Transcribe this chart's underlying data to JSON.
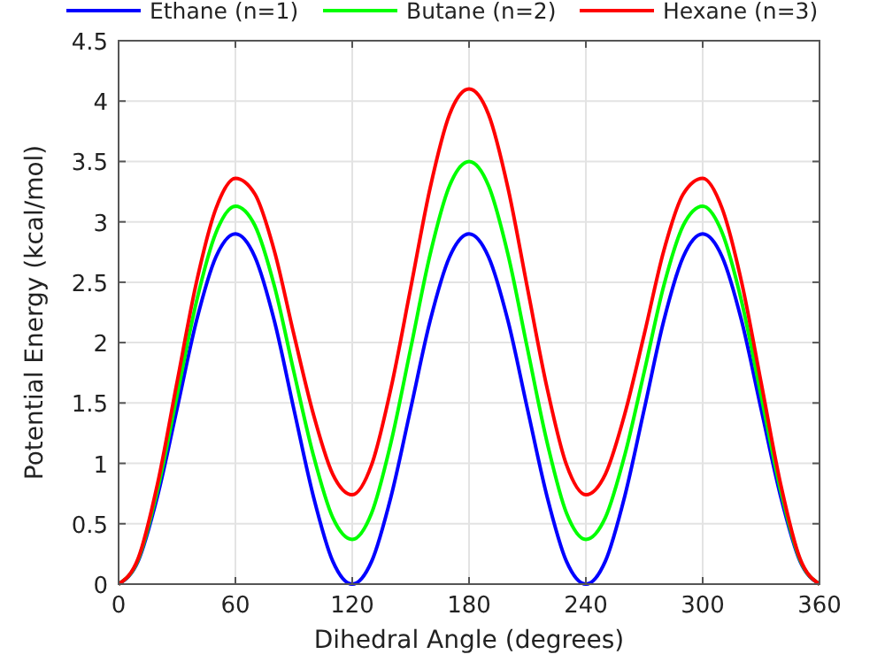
{
  "chart_data": {
    "type": "line",
    "xlabel": "Dihedral Angle (degrees)",
    "ylabel": "Potential Energy (kcal/mol)",
    "x": [
      0,
      10,
      20,
      30,
      40,
      50,
      60,
      70,
      80,
      90,
      100,
      110,
      120,
      130,
      140,
      150,
      160,
      170,
      180,
      190,
      200,
      210,
      220,
      230,
      240,
      250,
      260,
      270,
      280,
      290,
      300,
      310,
      320,
      330,
      340,
      350,
      360
    ],
    "xlim": [
      0,
      360
    ],
    "xticks": [
      0,
      60,
      120,
      180,
      240,
      300,
      360
    ],
    "ylim": [
      0,
      4.5
    ],
    "yticks": [
      0,
      0.5,
      1,
      1.5,
      2,
      2.5,
      3,
      3.5,
      4,
      4.5
    ],
    "grid": true,
    "legend": "top",
    "line_style": "solid",
    "marker": "none",
    "series": [
      {
        "name": "Ethane (n=1)",
        "color": "#0000ff",
        "values": [
          0,
          0.19,
          0.73,
          1.45,
          2.18,
          2.71,
          2.9,
          2.71,
          2.18,
          1.45,
          0.73,
          0.19,
          0,
          0.19,
          0.73,
          1.45,
          2.18,
          2.71,
          2.9,
          2.71,
          2.18,
          1.45,
          0.73,
          0.19,
          0,
          0.19,
          0.73,
          1.45,
          2.18,
          2.71,
          2.9,
          2.71,
          2.18,
          1.45,
          0.73,
          0.19,
          0
        ]
      },
      {
        "name": "Butane (n=2)",
        "color": "#00ff00",
        "values": [
          0,
          0.2,
          0.78,
          1.56,
          2.34,
          2.91,
          3.13,
          2.97,
          2.47,
          1.76,
          1.07,
          0.55,
          0.37,
          0.59,
          1.18,
          1.95,
          2.73,
          3.3,
          3.5,
          3.3,
          2.73,
          1.95,
          1.18,
          0.59,
          0.37,
          0.55,
          1.07,
          1.76,
          2.47,
          2.97,
          3.13,
          2.91,
          2.34,
          1.56,
          0.78,
          0.2,
          0
        ]
      },
      {
        "name": "Hexane (n=3)",
        "color": "#ff0000",
        "values": [
          0,
          0.21,
          0.83,
          1.67,
          2.5,
          3.11,
          3.36,
          3.23,
          2.76,
          2.07,
          1.41,
          0.91,
          0.74,
          0.99,
          1.63,
          2.45,
          3.28,
          3.89,
          4.1,
          3.89,
          3.28,
          2.45,
          1.63,
          0.99,
          0.74,
          0.91,
          1.41,
          2.07,
          2.76,
          3.23,
          3.36,
          3.11,
          2.5,
          1.67,
          0.83,
          0.21,
          0
        ]
      }
    ]
  }
}
